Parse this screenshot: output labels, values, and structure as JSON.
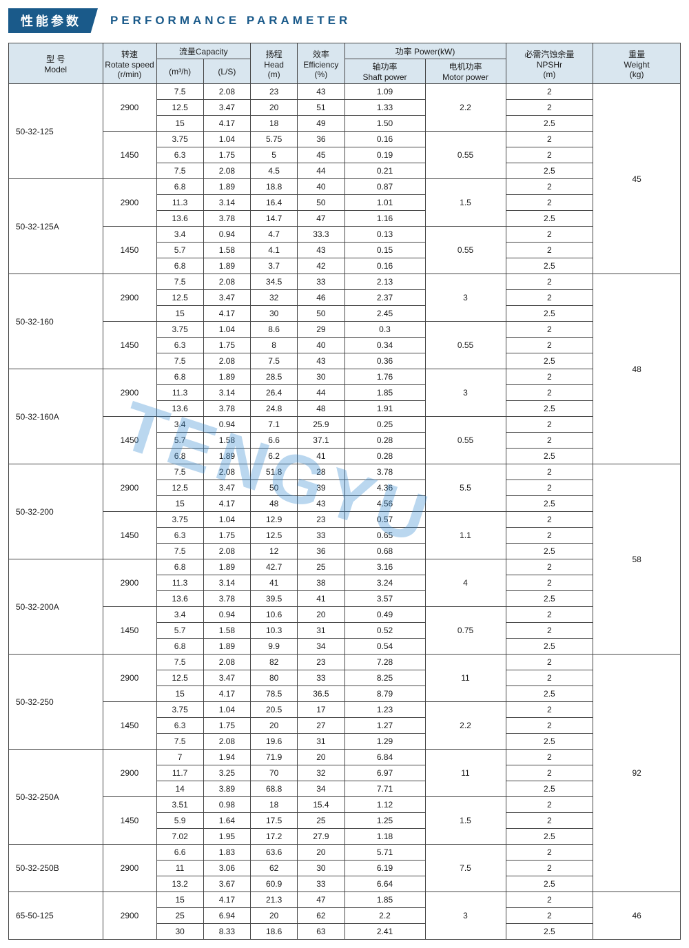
{
  "header": {
    "badge_cn": "性能参数",
    "title_en": "PERFORMANCE  PARAMETER"
  },
  "watermark": "TENGYU",
  "columns": {
    "model_cn": "型  号",
    "model_en": "Model",
    "speed_cn": "转速",
    "speed_en": "Rotate speed",
    "speed_unit": "(r/min)",
    "capacity_cn": "流量",
    "capacity_en": "Capacity",
    "cap_m3h": "(m³/h)",
    "cap_ls": "(L/S)",
    "head_cn": "扬程",
    "head_en": "Head",
    "head_unit": "(m)",
    "eff_cn": "效率",
    "eff_en": "Efficiency",
    "eff_unit": "(%)",
    "power_cn": "功率",
    "power_en": "Power(kW)",
    "shaft_cn": "轴功率",
    "shaft_en": "Shaft power",
    "motor_cn": "电机功率",
    "motor_en": "Motor power",
    "npsh_cn": "必需汽蚀余量",
    "npsh_en": "NPSHr",
    "npsh_unit": "(m)",
    "weight_cn": "重量",
    "weight_en": "Weight",
    "weight_unit": "(kg)"
  },
  "col_widths": [
    "14%",
    "8%",
    "7%",
    "7%",
    "7%",
    "7%",
    "12%",
    "12%",
    "13%",
    "13%"
  ],
  "header_bg": "#d9e6ef",
  "border_color": "#444444",
  "badge_bg": "#1a5a8a",
  "models": [
    {
      "model": "50-32-125",
      "weight_span": 12,
      "weight": "45",
      "speeds": [
        {
          "rpm": "2900",
          "motor": "2.2",
          "rows": [
            [
              "7.5",
              "2.08",
              "23",
              "43",
              "1.09",
              "2"
            ],
            [
              "12.5",
              "3.47",
              "20",
              "51",
              "1.33",
              "2"
            ],
            [
              "15",
              "4.17",
              "18",
              "49",
              "1.50",
              "2.5"
            ]
          ]
        },
        {
          "rpm": "1450",
          "motor": "0.55",
          "rows": [
            [
              "3.75",
              "1.04",
              "5.75",
              "36",
              "0.16",
              "2"
            ],
            [
              "6.3",
              "1.75",
              "5",
              "45",
              "0.19",
              "2"
            ],
            [
              "7.5",
              "2.08",
              "4.5",
              "44",
              "0.21",
              "2.5"
            ]
          ]
        }
      ]
    },
    {
      "model": "50-32-125A",
      "speeds": [
        {
          "rpm": "2900",
          "motor": "1.5",
          "rows": [
            [
              "6.8",
              "1.89",
              "18.8",
              "40",
              "0.87",
              "2"
            ],
            [
              "11.3",
              "3.14",
              "16.4",
              "50",
              "1.01",
              "2"
            ],
            [
              "13.6",
              "3.78",
              "14.7",
              "47",
              "1.16",
              "2.5"
            ]
          ]
        },
        {
          "rpm": "1450",
          "motor": "0.55",
          "rows": [
            [
              "3.4",
              "0.94",
              "4.7",
              "33.3",
              "0.13",
              "2"
            ],
            [
              "5.7",
              "1.58",
              "4.1",
              "43",
              "0.15",
              "2"
            ],
            [
              "6.8",
              "1.89",
              "3.7",
              "42",
              "0.16",
              "2.5"
            ]
          ]
        }
      ]
    },
    {
      "model": "50-32-160",
      "weight_span": 12,
      "weight": "48",
      "speeds": [
        {
          "rpm": "2900",
          "motor": "3",
          "rows": [
            [
              "7.5",
              "2.08",
              "34.5",
              "33",
              "2.13",
              "2"
            ],
            [
              "12.5",
              "3.47",
              "32",
              "46",
              "2.37",
              "2"
            ],
            [
              "15",
              "4.17",
              "30",
              "50",
              "2.45",
              "2.5"
            ]
          ]
        },
        {
          "rpm": "1450",
          "motor": "0.55",
          "rows": [
            [
              "3.75",
              "1.04",
              "8.6",
              "29",
              "0.3",
              "2"
            ],
            [
              "6.3",
              "1.75",
              "8",
              "40",
              "0.34",
              "2"
            ],
            [
              "7.5",
              "2.08",
              "7.5",
              "43",
              "0.36",
              "2.5"
            ]
          ]
        }
      ]
    },
    {
      "model": "50-32-160A",
      "speeds": [
        {
          "rpm": "2900",
          "motor": "3",
          "rows": [
            [
              "6.8",
              "1.89",
              "28.5",
              "30",
              "1.76",
              "2"
            ],
            [
              "11.3",
              "3.14",
              "26.4",
              "44",
              "1.85",
              "2"
            ],
            [
              "13.6",
              "3.78",
              "24.8",
              "48",
              "1.91",
              "2.5"
            ]
          ]
        },
        {
          "rpm": "1450",
          "motor": "0.55",
          "rows": [
            [
              "3.4",
              "0.94",
              "7.1",
              "25.9",
              "0.25",
              "2"
            ],
            [
              "5.7",
              "1.58",
              "6.6",
              "37.1",
              "0.28",
              "2"
            ],
            [
              "6.8",
              "1.89",
              "6.2",
              "41",
              "0.28",
              "2.5"
            ]
          ]
        }
      ]
    },
    {
      "model": "50-32-200",
      "weight_span": 12,
      "weight": "58",
      "speeds": [
        {
          "rpm": "2900",
          "motor": "5.5",
          "rows": [
            [
              "7.5",
              "2.08",
              "51.8",
              "28",
              "3.78",
              "2"
            ],
            [
              "12.5",
              "3.47",
              "50",
              "39",
              "4.36",
              "2"
            ],
            [
              "15",
              "4.17",
              "48",
              "43",
              "4.56",
              "2.5"
            ]
          ]
        },
        {
          "rpm": "1450",
          "motor": "1.1",
          "rows": [
            [
              "3.75",
              "1.04",
              "12.9",
              "23",
              "0.57",
              "2"
            ],
            [
              "6.3",
              "1.75",
              "12.5",
              "33",
              "0.65",
              "2"
            ],
            [
              "7.5",
              "2.08",
              "12",
              "36",
              "0.68",
              "2.5"
            ]
          ]
        }
      ]
    },
    {
      "model": "50-32-200A",
      "speeds": [
        {
          "rpm": "2900",
          "motor": "4",
          "rows": [
            [
              "6.8",
              "1.89",
              "42.7",
              "25",
              "3.16",
              "2"
            ],
            [
              "11.3",
              "3.14",
              "41",
              "38",
              "3.24",
              "2"
            ],
            [
              "13.6",
              "3.78",
              "39.5",
              "41",
              "3.57",
              "2.5"
            ]
          ]
        },
        {
          "rpm": "1450",
          "motor": "0.75",
          "rows": [
            [
              "3.4",
              "0.94",
              "10.6",
              "20",
              "0.49",
              "2"
            ],
            [
              "5.7",
              "1.58",
              "10.3",
              "31",
              "0.52",
              "2"
            ],
            [
              "6.8",
              "1.89",
              "9.9",
              "34",
              "0.54",
              "2.5"
            ]
          ]
        }
      ]
    },
    {
      "model": "50-32-250",
      "weight_span": 15,
      "weight": "92",
      "speeds": [
        {
          "rpm": "2900",
          "motor": "11",
          "rows": [
            [
              "7.5",
              "2.08",
              "82",
              "23",
              "7.28",
              "2"
            ],
            [
              "12.5",
              "3.47",
              "80",
              "33",
              "8.25",
              "2"
            ],
            [
              "15",
              "4.17",
              "78.5",
              "36.5",
              "8.79",
              "2.5"
            ]
          ]
        },
        {
          "rpm": "1450",
          "motor": "2.2",
          "rows": [
            [
              "3.75",
              "1.04",
              "20.5",
              "17",
              "1.23",
              "2"
            ],
            [
              "6.3",
              "1.75",
              "20",
              "27",
              "1.27",
              "2"
            ],
            [
              "7.5",
              "2.08",
              "19.6",
              "31",
              "1.29",
              "2.5"
            ]
          ]
        }
      ]
    },
    {
      "model": "50-32-250A",
      "speeds": [
        {
          "rpm": "2900",
          "motor": "11",
          "rows": [
            [
              "7",
              "1.94",
              "71.9",
              "20",
              "6.84",
              "2"
            ],
            [
              "11.7",
              "3.25",
              "70",
              "32",
              "6.97",
              "2"
            ],
            [
              "14",
              "3.89",
              "68.8",
              "34",
              "7.71",
              "2.5"
            ]
          ]
        },
        {
          "rpm": "1450",
          "motor": "1.5",
          "rows": [
            [
              "3.51",
              "0.98",
              "18",
              "15.4",
              "1.12",
              "2"
            ],
            [
              "5.9",
              "1.64",
              "17.5",
              "25",
              "1.25",
              "2"
            ],
            [
              "7.02",
              "1.95",
              "17.2",
              "27.9",
              "1.18",
              "2.5"
            ]
          ]
        }
      ]
    },
    {
      "model": "50-32-250B",
      "speeds": [
        {
          "rpm": "2900",
          "motor": "7.5",
          "rows": [
            [
              "6.6",
              "1.83",
              "63.6",
              "20",
              "5.71",
              "2"
            ],
            [
              "11",
              "3.06",
              "62",
              "30",
              "6.19",
              "2"
            ],
            [
              "13.2",
              "3.67",
              "60.9",
              "33",
              "6.64",
              "2.5"
            ]
          ]
        }
      ]
    },
    {
      "model": "65-50-125",
      "weight_span": 3,
      "weight": "46",
      "speeds": [
        {
          "rpm": "2900",
          "motor": "3",
          "rows": [
            [
              "15",
              "4.17",
              "21.3",
              "47",
              "1.85",
              "2"
            ],
            [
              "25",
              "6.94",
              "20",
              "62",
              "2.2",
              "2"
            ],
            [
              "30",
              "8.33",
              "18.6",
              "63",
              "2.41",
              "2.5"
            ]
          ]
        }
      ]
    }
  ]
}
